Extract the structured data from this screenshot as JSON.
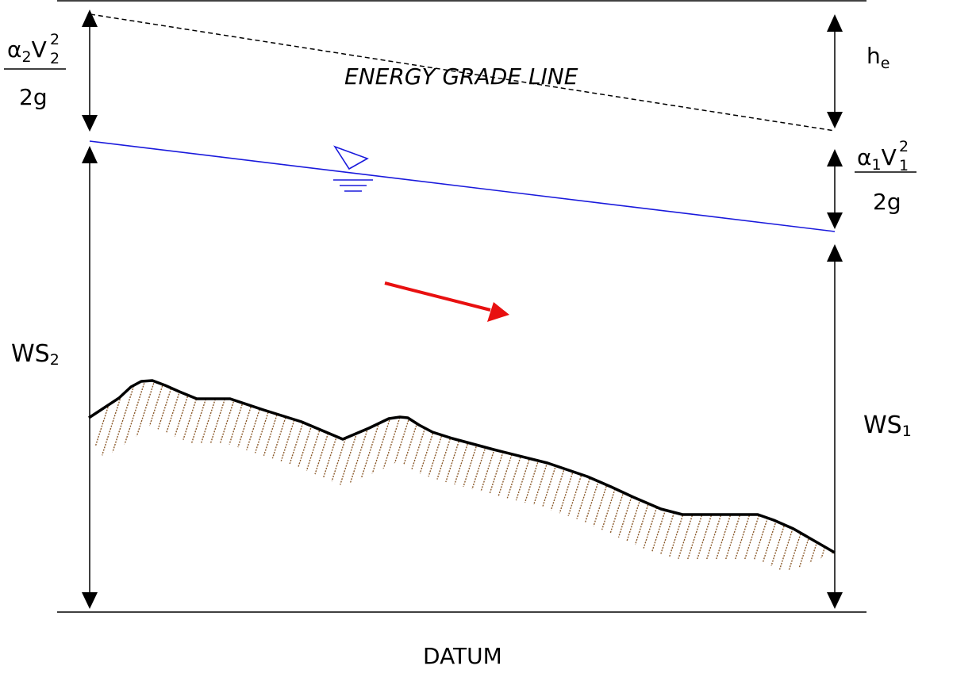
{
  "labels": {
    "energy_grade_line": "ENERGY GRADE LINE",
    "datum": "DATUM",
    "alpha2": "α",
    "alpha2_sub": "2",
    "v2": "V",
    "v2_sub": "2",
    "v2_sup": "2",
    "alpha1": "α",
    "alpha1_sub": "1",
    "v1": "V",
    "v1_sub": "1",
    "v1_sup": "2",
    "two_g_left": "2g",
    "two_g_right": "2g",
    "he": "h",
    "he_sub": "e",
    "ws2": "WS",
    "ws2_sub": "2",
    "ws1": "WS",
    "ws1_sub": "1"
  },
  "colors": {
    "water_surface": "#1a1adc",
    "flow_arrow": "#e81010",
    "bed_hatch": "#8b5a2b",
    "lines": "#000000"
  }
}
